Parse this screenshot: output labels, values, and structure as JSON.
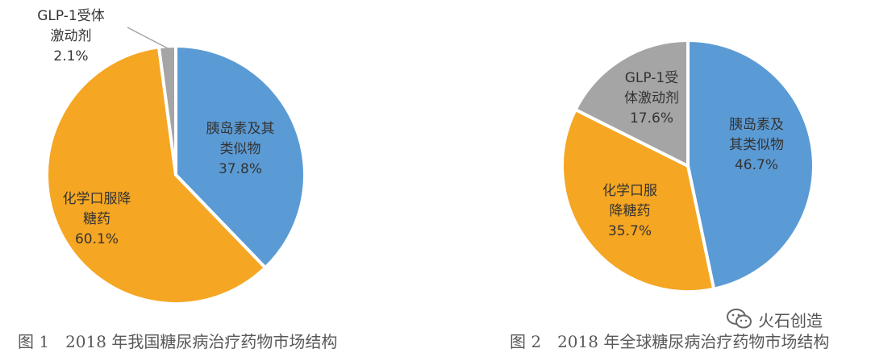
{
  "chart_data": [
    {
      "type": "pie",
      "title": "图 1　2018 年我国糖尿病治疗药物市场结构",
      "slices": [
        {
          "label": [
            "胰岛素及其",
            "类似物",
            "37.8%"
          ],
          "value": 37.8,
          "color": "#5b9bd5"
        },
        {
          "label": [
            "化学口服降",
            "糖药",
            "60.1%"
          ],
          "value": 60.1,
          "color": "#f5a623"
        },
        {
          "label": [
            "GLP-1受体",
            "激动剂",
            "2.1%"
          ],
          "value": 2.1,
          "color": "#a5a5a5"
        }
      ]
    },
    {
      "type": "pie",
      "title": "图 2　2018 年全球糖尿病治疗药物市场结构",
      "slices": [
        {
          "label": [
            "胰岛素及",
            "其类似物",
            "46.7%"
          ],
          "value": 46.7,
          "color": "#5b9bd5"
        },
        {
          "label": [
            "化学口服",
            "降糖药",
            "35.7%"
          ],
          "value": 35.7,
          "color": "#f5a623"
        },
        {
          "label": [
            "GLP-1受",
            "体激动剂",
            "17.6%"
          ],
          "value": 17.6,
          "color": "#a5a5a5"
        }
      ]
    }
  ],
  "watermark": {
    "text": "火石创造",
    "icon": "wechat-icon"
  }
}
